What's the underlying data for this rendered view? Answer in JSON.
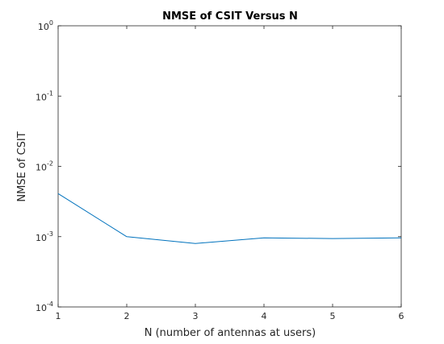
{
  "colors": {
    "background": "#ffffff",
    "axes": "#262626",
    "series": "#0072BD"
  },
  "chart_data": {
    "type": "line",
    "title": "NMSE of CSIT Versus N",
    "xlabel": "N (number of antennas at users)",
    "ylabel": "NMSE of CSIT",
    "xlim": [
      1,
      6
    ],
    "xticks": [
      1,
      2,
      3,
      4,
      5,
      6
    ],
    "yscale": "log",
    "ylim": [
      0.0001,
      1
    ],
    "yticks": [
      {
        "value": 1,
        "base": "10",
        "exp": "0"
      },
      {
        "value": 0.1,
        "base": "10",
        "exp": "-1"
      },
      {
        "value": 0.01,
        "base": "10",
        "exp": "-2"
      },
      {
        "value": 0.001,
        "base": "10",
        "exp": "-3"
      },
      {
        "value": 0.0001,
        "base": "10",
        "exp": "-4"
      }
    ],
    "grid": false,
    "series": [
      {
        "name": "NMSE",
        "x": [
          1,
          2,
          3,
          4,
          5,
          6
        ],
        "y": [
          0.0041,
          0.001,
          0.0008,
          0.00096,
          0.00094,
          0.00096
        ]
      }
    ]
  }
}
